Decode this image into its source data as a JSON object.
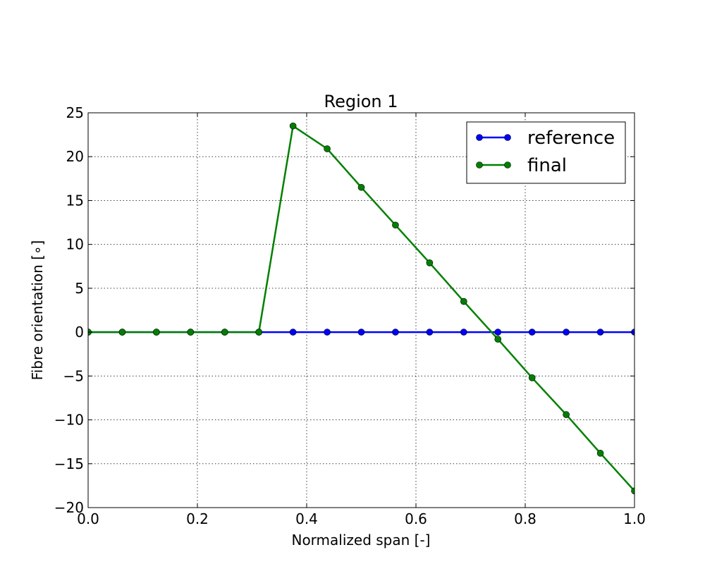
{
  "chart_data": {
    "type": "line",
    "title": "Region 1",
    "xlabel": "Normalized span [-]",
    "ylabel": "Fibre orientation [∘]",
    "xlim": [
      0.0,
      1.0
    ],
    "ylim": [
      -20,
      25
    ],
    "xticks": [
      0.0,
      0.2,
      0.4,
      0.6,
      0.8,
      1.0
    ],
    "xtick_labels": [
      "0.0",
      "0.2",
      "0.4",
      "0.6",
      "0.8",
      "1.0"
    ],
    "yticks": [
      -20,
      -15,
      -10,
      -5,
      0,
      5,
      10,
      15,
      20,
      25
    ],
    "ytick_labels": [
      "−20",
      "−15",
      "−10",
      "−5",
      "0",
      "5",
      "10",
      "15",
      "20",
      "25"
    ],
    "grid": true,
    "legend_position": "top-right",
    "x": [
      0.0,
      0.0625,
      0.125,
      0.1875,
      0.25,
      0.3125,
      0.375,
      0.4375,
      0.5,
      0.5625,
      0.625,
      0.6875,
      0.75,
      0.8125,
      0.875,
      0.9375,
      1.0
    ],
    "series": [
      {
        "name": "reference",
        "color": "#0000ff",
        "marker": "circle",
        "values": [
          0,
          0,
          0,
          0,
          0,
          0,
          0,
          0,
          0,
          0,
          0,
          0,
          0,
          0,
          0,
          0,
          0
        ]
      },
      {
        "name": "final",
        "color": "#008000",
        "marker": "circle",
        "values": [
          0,
          0,
          0,
          0,
          0,
          0,
          23.5,
          20.9,
          16.5,
          12.2,
          7.9,
          3.5,
          -0.8,
          -5.2,
          -9.4,
          -13.8,
          -18.1
        ]
      }
    ]
  }
}
